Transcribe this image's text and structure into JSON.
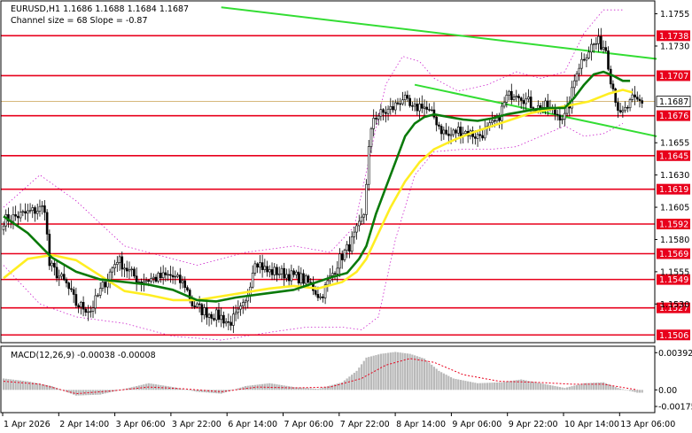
{
  "header": {
    "title": "EURUSD,H1 1.1686 1.1688 1.1684 1.1687",
    "channel": "Channel size = 68 Slope = -0.87"
  },
  "macd": {
    "label": "MACD(12,26,9) -0.00038 -0.00008",
    "ticks": [
      {
        "label": "0.00392",
        "value": 0.00392
      },
      {
        "label": "0.00",
        "value": 0.0
      },
      {
        "label": "-0.00175",
        "value": -0.00175
      }
    ]
  },
  "colors": {
    "level": "#e8001c",
    "channel": "#33dd33",
    "ma_fast": "#0a7a0a",
    "ma_slow": "#ffee22",
    "bollinger": "#cc22cc",
    "candle": "#000000",
    "macd_hist": "#b9b9b9",
    "macd_signal": "#e8001c",
    "current": "#c8a050"
  },
  "chart_data": {
    "type": "candlestick",
    "symbol": "EURUSD",
    "timeframe": "H1",
    "ylim": [
      1.15,
      1.1765
    ],
    "y_ticks": [
      {
        "label": "1.1755",
        "value": 1.1755
      },
      {
        "label": "1.1730",
        "value": 1.173
      },
      {
        "label": "1.1655",
        "value": 1.1655
      },
      {
        "label": "1.1630",
        "value": 1.163
      },
      {
        "label": "1.1605",
        "value": 1.1605
      },
      {
        "label": "1.1580",
        "value": 1.158
      },
      {
        "label": "1.1555",
        "value": 1.1555
      },
      {
        "label": "1.1530",
        "value": 1.153
      }
    ],
    "levels": [
      {
        "label": "1.1738",
        "value": 1.1738
      },
      {
        "label": "1.1707",
        "value": 1.1707
      },
      {
        "label": "1.1676",
        "value": 1.1676
      },
      {
        "label": "1.1645",
        "value": 1.1645
      },
      {
        "label": "1.1619",
        "value": 1.1619
      },
      {
        "label": "1.1592",
        "value": 1.1592
      },
      {
        "label": "1.1569",
        "value": 1.1569
      },
      {
        "label": "1.1549",
        "value": 1.1549
      },
      {
        "label": "1.1527",
        "value": 1.1527
      },
      {
        "label": "1.1506",
        "value": 1.1506
      }
    ],
    "current_price": {
      "label": "1.1687",
      "value": 1.1687
    },
    "x_labels": [
      "1 Apr 2026",
      "2 Apr 14:00",
      "3 Apr 06:00",
      "3 Apr 22:00",
      "6 Apr 14:00",
      "7 Apr 06:00",
      "7 Apr 22:00",
      "8 Apr 14:00",
      "9 Apr 06:00",
      "9 Apr 22:00",
      "10 Apr 14:00",
      "13 Apr 06:00"
    ],
    "close_path": [
      [
        0,
        1.1595
      ],
      [
        9,
        1.16
      ],
      [
        17,
        1.1605
      ],
      [
        19,
        1.156
      ],
      [
        26,
        1.1545
      ],
      [
        30,
        1.153
      ],
      [
        36,
        1.1525
      ],
      [
        40,
        1.154
      ],
      [
        47,
        1.1565
      ],
      [
        52,
        1.1555
      ],
      [
        56,
        1.1548
      ],
      [
        63,
        1.155
      ],
      [
        69,
        1.1552
      ],
      [
        75,
        1.1545
      ],
      [
        78,
        1.153
      ],
      [
        82,
        1.1525
      ],
      [
        86,
        1.1522
      ],
      [
        90,
        1.152
      ],
      [
        93,
        1.1515
      ],
      [
        96,
        1.152
      ],
      [
        100,
        1.153
      ],
      [
        104,
        1.1565
      ],
      [
        109,
        1.1555
      ],
      [
        113,
        1.1555
      ],
      [
        119,
        1.1552
      ],
      [
        123,
        1.155
      ],
      [
        127,
        1.1545
      ],
      [
        131,
        1.1535
      ],
      [
        135,
        1.155
      ],
      [
        139,
        1.1565
      ],
      [
        143,
        1.1575
      ],
      [
        147,
        1.159
      ],
      [
        149,
        1.16
      ],
      [
        151,
        1.165
      ],
      [
        153,
        1.1675
      ],
      [
        157,
        1.1678
      ],
      [
        161,
        1.1682
      ],
      [
        165,
        1.169
      ],
      [
        169,
        1.168
      ],
      [
        173,
        1.1685
      ],
      [
        176,
        1.1678
      ],
      [
        178,
        1.1675
      ],
      [
        181,
        1.1665
      ],
      [
        184,
        1.166
      ],
      [
        188,
        1.1665
      ],
      [
        192,
        1.1663
      ],
      [
        196,
        1.166
      ],
      [
        200,
        1.1665
      ],
      [
        204,
        1.1672
      ],
      [
        208,
        1.169
      ],
      [
        212,
        1.1695
      ],
      [
        216,
        1.1688
      ],
      [
        220,
        1.1682
      ],
      [
        224,
        1.1683
      ],
      [
        228,
        1.1678
      ],
      [
        232,
        1.1675
      ],
      [
        234,
        1.1685
      ],
      [
        237,
        1.1712
      ],
      [
        240,
        1.1722
      ],
      [
        243,
        1.173
      ],
      [
        246,
        1.1733
      ],
      [
        249,
        1.1728
      ],
      [
        251,
        1.1705
      ],
      [
        253,
        1.169
      ],
      [
        255,
        1.1675
      ],
      [
        257,
        1.168
      ],
      [
        260,
        1.1688
      ],
      [
        263,
        1.1687
      ]
    ],
    "ma_fast": [
      [
        0,
        1.1598
      ],
      [
        10,
        1.1585
      ],
      [
        20,
        1.1566
      ],
      [
        30,
        1.1555
      ],
      [
        40,
        1.1549
      ],
      [
        50,
        1.1547
      ],
      [
        60,
        1.1545
      ],
      [
        70,
        1.1541
      ],
      [
        80,
        1.1533
      ],
      [
        88,
        1.1532
      ],
      [
        96,
        1.1535
      ],
      [
        104,
        1.1537
      ],
      [
        112,
        1.1539
      ],
      [
        120,
        1.1541
      ],
      [
        128,
        1.1546
      ],
      [
        136,
        1.1551
      ],
      [
        142,
        1.1554
      ],
      [
        147,
        1.1565
      ],
      [
        150,
        1.1575
      ],
      [
        154,
        1.16
      ],
      [
        158,
        1.162
      ],
      [
        162,
        1.164
      ],
      [
        166,
        1.166
      ],
      [
        170,
        1.167
      ],
      [
        174,
        1.1675
      ],
      [
        178,
        1.1677
      ],
      [
        184,
        1.1675
      ],
      [
        190,
        1.1673
      ],
      [
        196,
        1.1672
      ],
      [
        202,
        1.1674
      ],
      [
        208,
        1.1677
      ],
      [
        214,
        1.1679
      ],
      [
        220,
        1.1681
      ],
      [
        226,
        1.1682
      ],
      [
        232,
        1.1682
      ],
      [
        236,
        1.169
      ],
      [
        240,
        1.17
      ],
      [
        244,
        1.1708
      ],
      [
        248,
        1.171
      ],
      [
        252,
        1.1707
      ],
      [
        256,
        1.1703
      ],
      [
        259,
        1.1703
      ]
    ],
    "ma_slow": [
      [
        0,
        1.155
      ],
      [
        10,
        1.1565
      ],
      [
        20,
        1.1568
      ],
      [
        30,
        1.1564
      ],
      [
        40,
        1.1552
      ],
      [
        50,
        1.154
      ],
      [
        60,
        1.1537
      ],
      [
        70,
        1.1533
      ],
      [
        80,
        1.1533
      ],
      [
        90,
        1.1536
      ],
      [
        100,
        1.1539
      ],
      [
        110,
        1.1542
      ],
      [
        120,
        1.1544
      ],
      [
        130,
        1.1542
      ],
      [
        140,
        1.1547
      ],
      [
        146,
        1.1555
      ],
      [
        150,
        1.1565
      ],
      [
        155,
        1.1585
      ],
      [
        160,
        1.1605
      ],
      [
        166,
        1.1625
      ],
      [
        172,
        1.164
      ],
      [
        178,
        1.165
      ],
      [
        186,
        1.1657
      ],
      [
        194,
        1.1663
      ],
      [
        202,
        1.1668
      ],
      [
        210,
        1.1673
      ],
      [
        218,
        1.1678
      ],
      [
        226,
        1.1681
      ],
      [
        234,
        1.1684
      ],
      [
        242,
        1.1687
      ],
      [
        250,
        1.1693
      ],
      [
        256,
        1.1696
      ],
      [
        260,
        1.1694
      ]
    ],
    "bollinger_upper": [
      [
        0,
        1.1605
      ],
      [
        15,
        1.163
      ],
      [
        30,
        1.161
      ],
      [
        50,
        1.1575
      ],
      [
        80,
        1.156
      ],
      [
        100,
        1.157
      ],
      [
        120,
        1.1575
      ],
      [
        135,
        1.157
      ],
      [
        145,
        1.159
      ],
      [
        152,
        1.165
      ],
      [
        158,
        1.17
      ],
      [
        165,
        1.1722
      ],
      [
        172,
        1.1718
      ],
      [
        178,
        1.1705
      ],
      [
        188,
        1.1695
      ],
      [
        200,
        1.17
      ],
      [
        212,
        1.171
      ],
      [
        222,
        1.1705
      ],
      [
        232,
        1.171
      ],
      [
        240,
        1.174
      ],
      [
        248,
        1.1758
      ],
      [
        256,
        1.1758
      ]
    ],
    "bollinger_lower": [
      [
        0,
        1.156
      ],
      [
        15,
        1.153
      ],
      [
        30,
        1.152
      ],
      [
        50,
        1.1515
      ],
      [
        70,
        1.1505
      ],
      [
        90,
        1.1502
      ],
      [
        110,
        1.1508
      ],
      [
        125,
        1.1512
      ],
      [
        140,
        1.1512
      ],
      [
        148,
        1.151
      ],
      [
        155,
        1.152
      ],
      [
        162,
        1.158
      ],
      [
        170,
        1.163
      ],
      [
        178,
        1.1648
      ],
      [
        190,
        1.165
      ],
      [
        202,
        1.165
      ],
      [
        212,
        1.1652
      ],
      [
        222,
        1.166
      ],
      [
        232,
        1.1668
      ],
      [
        240,
        1.166
      ],
      [
        248,
        1.1662
      ],
      [
        256,
        1.167
      ]
    ],
    "channel_lines": [
      {
        "name": "upper",
        "points": [
          [
            90,
            1.176
          ],
          [
            270,
            1.172
          ]
        ]
      },
      {
        "name": "middle",
        "points": [
          [
            170,
            1.17
          ],
          [
            270,
            1.166
          ]
        ]
      }
    ],
    "macd_hist_path": [
      [
        0,
        0.0012
      ],
      [
        10,
        0.0009
      ],
      [
        20,
        0.0004
      ],
      [
        30,
        -0.0006
      ],
      [
        40,
        -0.0005
      ],
      [
        50,
        0.0001
      ],
      [
        60,
        0.0007
      ],
      [
        70,
        0.0003
      ],
      [
        80,
        -0.0002
      ],
      [
        90,
        -0.0004
      ],
      [
        100,
        0.0004
      ],
      [
        110,
        0.0007
      ],
      [
        120,
        0.0003
      ],
      [
        130,
        0.0001
      ],
      [
        140,
        0.0008
      ],
      [
        146,
        0.002
      ],
      [
        150,
        0.0034
      ],
      [
        156,
        0.0038
      ],
      [
        162,
        0.004
      ],
      [
        168,
        0.0038
      ],
      [
        174,
        0.0033
      ],
      [
        180,
        0.002
      ],
      [
        186,
        0.0012
      ],
      [
        196,
        0.0007
      ],
      [
        206,
        0.0008
      ],
      [
        214,
        0.0011
      ],
      [
        222,
        0.0007
      ],
      [
        232,
        0.0002
      ],
      [
        240,
        0.0007
      ],
      [
        248,
        0.0008
      ],
      [
        254,
        0.0002
      ],
      [
        262,
        -0.0003
      ]
    ],
    "macd_signal_path": [
      [
        0,
        0.0009
      ],
      [
        15,
        0.0006
      ],
      [
        30,
        -0.0004
      ],
      [
        45,
        -0.0001
      ],
      [
        60,
        0.0003
      ],
      [
        75,
        0.0001
      ],
      [
        90,
        -0.0002
      ],
      [
        105,
        0.0003
      ],
      [
        120,
        0.0002
      ],
      [
        135,
        0.0003
      ],
      [
        148,
        0.0012
      ],
      [
        158,
        0.0026
      ],
      [
        168,
        0.0033
      ],
      [
        178,
        0.0029
      ],
      [
        190,
        0.0016
      ],
      [
        205,
        0.0009
      ],
      [
        220,
        0.0008
      ],
      [
        235,
        0.0006
      ],
      [
        248,
        0.0006
      ],
      [
        262,
        0.0
      ]
    ]
  }
}
